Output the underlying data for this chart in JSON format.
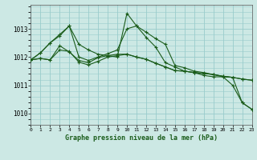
{
  "title": "Graphe pression niveau de la mer (hPa)",
  "bg_color": "#cce8e4",
  "grid_color": "#99cccc",
  "line_color": "#1a5c1a",
  "text_color": "#1a5c1a",
  "xlim": [
    0,
    23
  ],
  "ylim": [
    1009.6,
    1013.85
  ],
  "yticks": [
    1010,
    1011,
    1012,
    1013
  ],
  "xticks": [
    0,
    1,
    2,
    3,
    4,
    5,
    6,
    7,
    8,
    9,
    10,
    11,
    12,
    13,
    14,
    15,
    16,
    17,
    18,
    19,
    20,
    21,
    22,
    23
  ],
  "series": [
    [
      1011.9,
      1012.15,
      1012.5,
      1012.8,
      1013.1,
      1012.45,
      1012.25,
      1012.1,
      1012.05,
      1012.0,
      1013.55,
      1013.1,
      1012.7,
      1012.35,
      1011.8,
      1011.65,
      1011.5,
      1011.45,
      1011.35,
      1011.3,
      1011.3,
      1011.0,
      1010.38,
      1010.15
    ],
    [
      1011.9,
      1012.15,
      1012.5,
      1012.75,
      1013.1,
      1012.0,
      1011.88,
      1012.0,
      1012.12,
      1012.25,
      1013.0,
      1013.1,
      1012.88,
      1012.65,
      1012.45,
      1011.7,
      1011.62,
      1011.5,
      1011.45,
      1011.38,
      1011.3,
      1011.28,
      1010.38,
      1010.15
    ],
    [
      1011.9,
      1011.95,
      1011.9,
      1012.25,
      1012.2,
      1011.82,
      1011.72,
      1011.85,
      1012.0,
      1012.05,
      1012.1,
      1012.0,
      1011.92,
      1011.78,
      1011.65,
      1011.52,
      1011.5,
      1011.45,
      1011.42,
      1011.38,
      1011.32,
      1011.28,
      1011.22,
      1011.18
    ],
    [
      1011.9,
      1011.95,
      1011.9,
      1012.4,
      1012.18,
      1011.88,
      1011.8,
      1011.98,
      1012.05,
      1012.1,
      1012.1,
      1012.0,
      1011.92,
      1011.78,
      1011.65,
      1011.52,
      1011.5,
      1011.45,
      1011.42,
      1011.38,
      1011.32,
      1011.28,
      1011.22,
      1011.18
    ]
  ]
}
